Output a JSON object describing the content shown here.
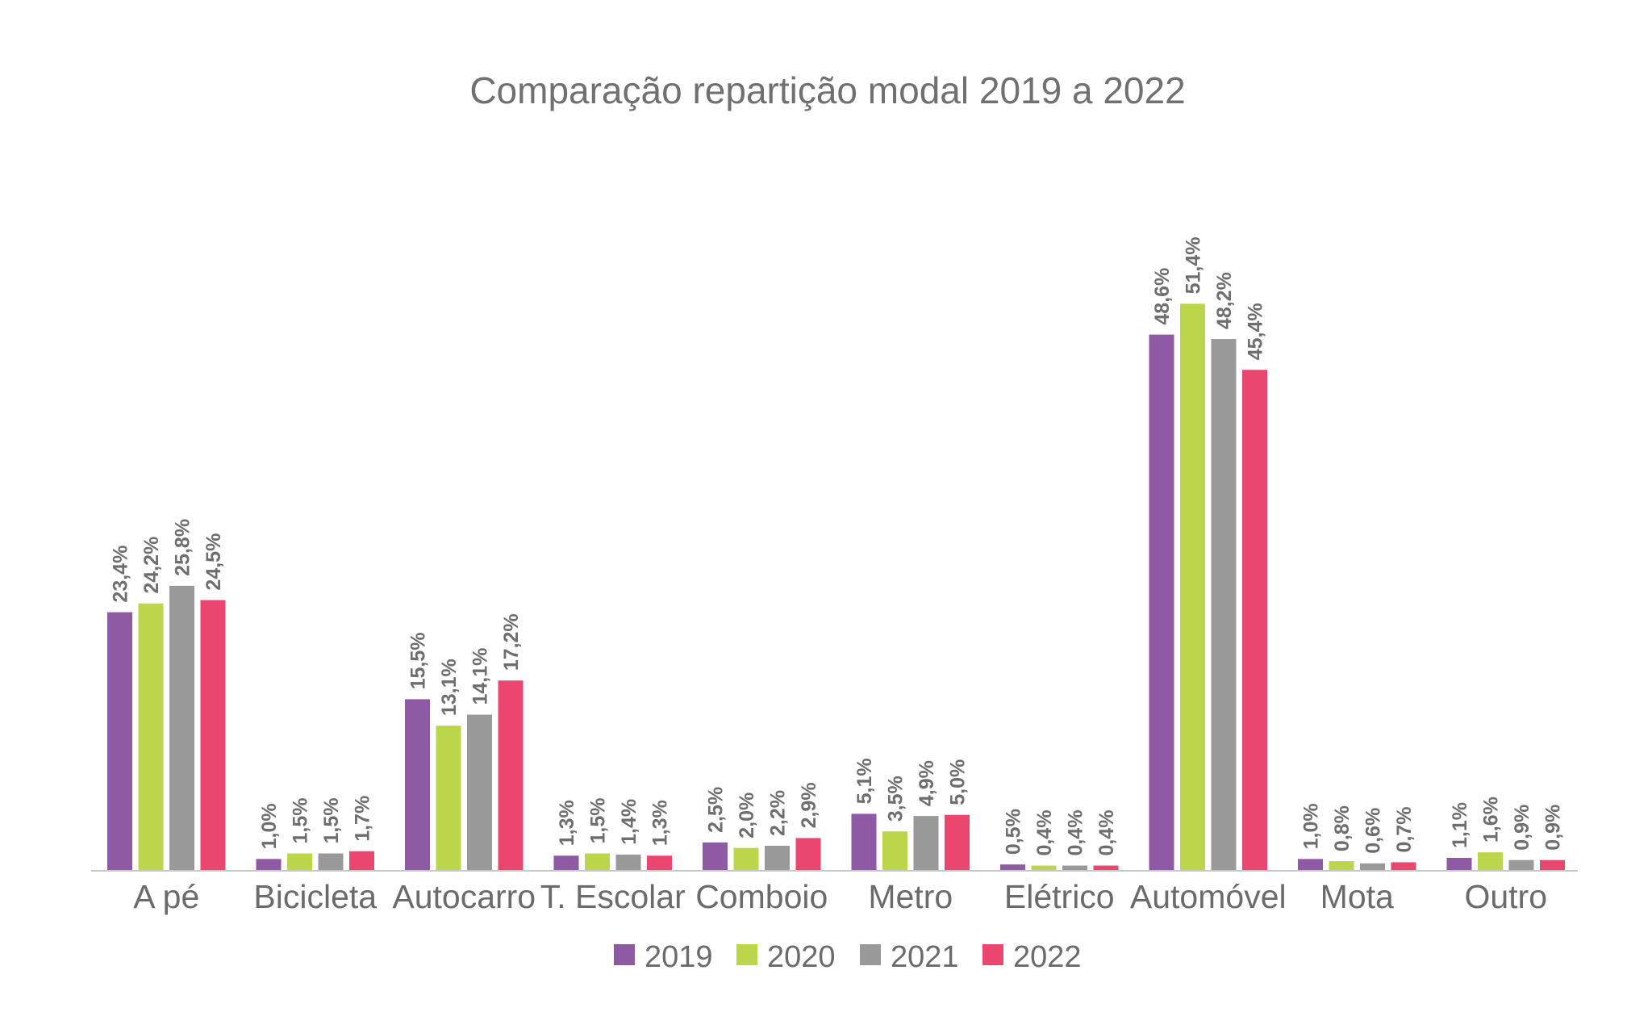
{
  "chart_data": {
    "type": "bar",
    "title": "Comparação repartição modal 2019 a 2022",
    "xlabel": "",
    "ylabel": "",
    "ylim": [
      0,
      60
    ],
    "grid": false,
    "legend_position": "bottom",
    "categories": [
      "A pé",
      "Bicicleta",
      "Autocarro",
      "T. Escolar",
      "Comboio",
      "Metro",
      "Elétrico",
      "Automóvel",
      "Mota",
      "Outro"
    ],
    "series": [
      {
        "name": "2019",
        "color": "#8e5aa4",
        "values": [
          23.4,
          1.0,
          15.5,
          1.3,
          2.5,
          5.1,
          0.5,
          48.6,
          1.0,
          1.1
        ],
        "labels": [
          "23,4%",
          "1,0%",
          "15,5%",
          "1,3%",
          "2,5%",
          "5,1%",
          "0,5%",
          "48,6%",
          "1,0%",
          "1,1%"
        ]
      },
      {
        "name": "2020",
        "color": "#bcd64c",
        "values": [
          24.2,
          1.5,
          13.1,
          1.5,
          2.0,
          3.5,
          0.4,
          51.4,
          0.8,
          1.6
        ],
        "labels": [
          "24,2%",
          "1,5%",
          "13,1%",
          "1,5%",
          "2,0%",
          "3,5%",
          "0,4%",
          "51,4%",
          "0,8%",
          "1,6%"
        ]
      },
      {
        "name": "2021",
        "color": "#999999",
        "values": [
          25.8,
          1.5,
          14.1,
          1.4,
          2.2,
          4.9,
          0.4,
          48.2,
          0.6,
          0.9
        ],
        "labels": [
          "25,8%",
          "1,5%",
          "14,1%",
          "1,4%",
          "2,2%",
          "4,9%",
          "0,4%",
          "48,2%",
          "0,6%",
          "0,9%"
        ]
      },
      {
        "name": "2022",
        "color": "#eb4670",
        "values": [
          24.5,
          1.7,
          17.2,
          1.3,
          2.9,
          5.0,
          0.4,
          45.4,
          0.7,
          0.9
        ],
        "labels": [
          "24,5%",
          "1,7%",
          "17,2%",
          "1,3%",
          "2,9%",
          "5,0%",
          "0,4%",
          "45,4%",
          "0,7%",
          "0,9%"
        ]
      }
    ],
    "axis_color": "#c8c8c8"
  }
}
